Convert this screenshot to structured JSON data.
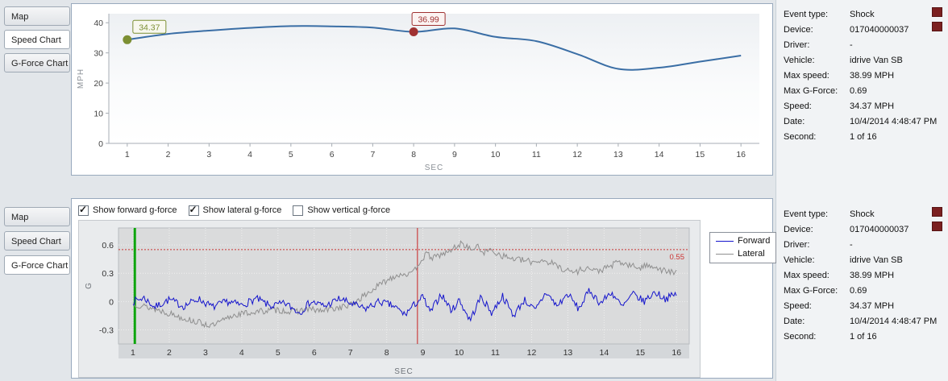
{
  "tabs": {
    "items": [
      "Map",
      "Speed Chart",
      "G-Force Chart"
    ],
    "top_active_index": 1,
    "bottom_active_index": 2
  },
  "info": {
    "rows": [
      {
        "label": "Event type:",
        "value": "Shock"
      },
      {
        "label": "Device:",
        "value": "017040000037"
      },
      {
        "label": "Driver:",
        "value": "-"
      },
      {
        "label": "Vehicle:",
        "value": "idrive Van SB"
      },
      {
        "label": "Max speed:",
        "value": "38.99 MPH"
      },
      {
        "label": "Max G-Force:",
        "value": "0.69"
      },
      {
        "label": "Speed:",
        "value": "34.37 MPH"
      },
      {
        "label": "Date:",
        "value": "10/4/2014 4:48:47 PM"
      },
      {
        "label": "Second:",
        "value": "1 of 16"
      }
    ]
  },
  "gforce_controls": {
    "checkboxes": [
      {
        "label": "Show forward g-force",
        "checked": true
      },
      {
        "label": "Show lateral g-force",
        "checked": true
      },
      {
        "label": "Show vertical g-force",
        "checked": false
      }
    ]
  },
  "chart_data": [
    {
      "id": "speed",
      "type": "line",
      "title": "",
      "xlabel": "SEC",
      "ylabel": "MPH",
      "color": "#3a6ea5",
      "x": [
        1,
        2,
        3,
        4,
        5,
        6,
        7,
        8,
        9,
        10,
        11,
        12,
        13,
        14,
        15,
        16
      ],
      "values": [
        34.37,
        36.3,
        37.4,
        38.3,
        38.9,
        38.8,
        38.4,
        36.99,
        38.1,
        35.3,
        33.9,
        29.6,
        24.7,
        25.1,
        27.1,
        29.1
      ],
      "xticks": [
        1,
        2,
        3,
        4,
        5,
        6,
        7,
        8,
        9,
        10,
        11,
        12,
        13,
        14,
        15,
        16
      ],
      "yticks": [
        0,
        10,
        20,
        30,
        40
      ],
      "ylim": [
        0,
        40
      ],
      "annotations": [
        {
          "x": 1,
          "y": 34.37,
          "label": "34.37",
          "color": "#7c8f33",
          "bg": "#f8f8ef"
        },
        {
          "x": 8,
          "y": 36.99,
          "label": "36.99",
          "color": "#a03232",
          "bg": "#fbf3f2"
        }
      ]
    },
    {
      "id": "gforce",
      "type": "line",
      "title": "",
      "xlabel": "SEC",
      "ylabel": "G",
      "xticks": [
        1,
        2,
        3,
        4,
        5,
        6,
        7,
        8,
        9,
        10,
        11,
        12,
        13,
        14,
        15,
        16
      ],
      "yticks": [
        -0.3,
        0,
        0.3,
        0.6
      ],
      "ylim": [
        -0.45,
        0.78
      ],
      "legend": [
        "Forward",
        "Lateral"
      ],
      "legend_position": "right",
      "grid": true,
      "threshold": {
        "y": 0.55,
        "label": "0.55",
        "color": "#cc3333"
      },
      "vlines": [
        {
          "x": 1.05,
          "color": "#0da50d",
          "width": 3
        },
        {
          "x": 8.85,
          "color": "#c92222",
          "width": 1
        }
      ],
      "series": [
        {
          "name": "Forward",
          "color": "#1414cc",
          "noise": 0.04,
          "keypoints": [
            [
              1,
              0.0
            ],
            [
              1.3,
              0.04
            ],
            [
              1.6,
              -0.06
            ],
            [
              2,
              0.02
            ],
            [
              2.4,
              -0.05
            ],
            [
              2.8,
              0.03
            ],
            [
              3.2,
              -0.06
            ],
            [
              3.6,
              0.0
            ],
            [
              4,
              -0.04
            ],
            [
              4.4,
              0.03
            ],
            [
              4.8,
              -0.05
            ],
            [
              5.2,
              -0.02
            ],
            [
              5.6,
              -0.12
            ],
            [
              5.9,
              0.0
            ],
            [
              6.3,
              -0.05
            ],
            [
              6.7,
              0.03
            ],
            [
              7,
              -0.02
            ],
            [
              7.4,
              -0.08
            ],
            [
              7.8,
              0.0
            ],
            [
              8.2,
              -0.05
            ],
            [
              8.5,
              -0.14
            ],
            [
              8.8,
              -0.02
            ],
            [
              9,
              0.05
            ],
            [
              9.2,
              -0.12
            ],
            [
              9.5,
              0.08
            ],
            [
              9.8,
              -0.1
            ],
            [
              10,
              0.02
            ],
            [
              10.3,
              -0.2
            ],
            [
              10.6,
              0.05
            ],
            [
              10.9,
              -0.12
            ],
            [
              11.2,
              0.06
            ],
            [
              11.5,
              -0.15
            ],
            [
              11.8,
              0.02
            ],
            [
              12.1,
              -0.1
            ],
            [
              12.4,
              0.1
            ],
            [
              12.7,
              -0.05
            ],
            [
              13,
              0.08
            ],
            [
              13.3,
              -0.08
            ],
            [
              13.6,
              0.12
            ],
            [
              13.9,
              -0.02
            ],
            [
              14.2,
              0.1
            ],
            [
              14.5,
              -0.06
            ],
            [
              14.8,
              0.08
            ],
            [
              15.1,
              0.0
            ],
            [
              15.4,
              0.1
            ],
            [
              15.7,
              0.03
            ],
            [
              16,
              0.08
            ]
          ]
        },
        {
          "name": "Lateral",
          "color": "#8f8f8f",
          "noise": 0.035,
          "keypoints": [
            [
              1,
              -0.02
            ],
            [
              1.4,
              -0.06
            ],
            [
              1.8,
              -0.1
            ],
            [
              2.2,
              -0.15
            ],
            [
              2.6,
              -0.2
            ],
            [
              3,
              -0.24
            ],
            [
              3.2,
              -0.26
            ],
            [
              3.5,
              -0.2
            ],
            [
              3.8,
              -0.14
            ],
            [
              4.2,
              -0.12
            ],
            [
              4.6,
              -0.1
            ],
            [
              5,
              -0.09
            ],
            [
              5.4,
              -0.11
            ],
            [
              5.8,
              -0.08
            ],
            [
              6.2,
              -0.1
            ],
            [
              6.6,
              -0.07
            ],
            [
              7,
              -0.04
            ],
            [
              7.3,
              0.04
            ],
            [
              7.6,
              0.12
            ],
            [
              7.9,
              0.2
            ],
            [
              8.2,
              0.27
            ],
            [
              8.5,
              0.3
            ],
            [
              8.7,
              0.28
            ],
            [
              8.9,
              0.42
            ],
            [
              9.1,
              0.5
            ],
            [
              9.3,
              0.46
            ],
            [
              9.5,
              0.5
            ],
            [
              9.7,
              0.52
            ],
            [
              9.9,
              0.58
            ],
            [
              10.1,
              0.62
            ],
            [
              10.3,
              0.55
            ],
            [
              10.5,
              0.58
            ],
            [
              10.7,
              0.52
            ],
            [
              10.9,
              0.55
            ],
            [
              11.1,
              0.5
            ],
            [
              11.4,
              0.46
            ],
            [
              11.7,
              0.44
            ],
            [
              12,
              0.42
            ],
            [
              12.3,
              0.44
            ],
            [
              12.6,
              0.4
            ],
            [
              12.9,
              0.34
            ],
            [
              13.2,
              0.31
            ],
            [
              13.5,
              0.36
            ],
            [
              13.8,
              0.32
            ],
            [
              14.1,
              0.36
            ],
            [
              14.4,
              0.42
            ],
            [
              14.7,
              0.38
            ],
            [
              15,
              0.36
            ],
            [
              15.3,
              0.39
            ],
            [
              15.6,
              0.33
            ],
            [
              16,
              0.3
            ]
          ]
        }
      ]
    }
  ]
}
